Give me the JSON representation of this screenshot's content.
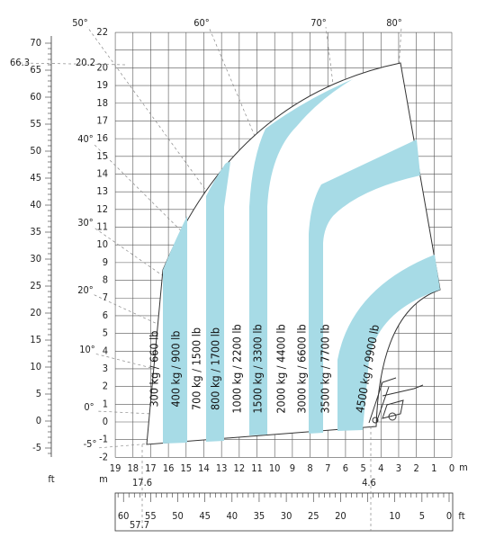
{
  "y_axis_m": [
    22,
    20,
    19,
    18,
    17,
    16,
    15,
    14,
    13,
    12,
    11,
    10,
    9,
    8,
    7,
    6,
    5,
    4,
    3,
    2,
    1,
    0,
    -1,
    -2
  ],
  "x_axis_m": [
    19,
    18,
    17,
    16,
    15,
    14,
    13,
    12,
    11,
    10,
    9,
    8,
    7,
    6,
    5,
    4,
    3,
    2,
    1,
    0
  ],
  "ft_left": [
    70,
    65,
    60,
    55,
    50,
    45,
    40,
    35,
    30,
    25,
    20,
    15,
    10,
    5,
    0,
    -5
  ],
  "ft_bottom": [
    60,
    55,
    50,
    45,
    40,
    35,
    30,
    25,
    20,
    10,
    5,
    0
  ],
  "angles": [
    "50°",
    "60°",
    "70°",
    "80°",
    "40°",
    "30°",
    "20°",
    "10°",
    "0°",
    "-5°"
  ],
  "markers": {
    "max_height_ft": "66.3",
    "max_height_m": "20.2",
    "max_reach_m": "17.6",
    "max_reach_ft": "57.7",
    "min_reach_m": "4.6"
  },
  "units": {
    "m_top": "m",
    "m_bottom": "m",
    "ft_left": "ft",
    "ft_bottom": "ft"
  },
  "load_zones": [
    "300 kg / 660 lb",
    "400 kg / 900 lb",
    "700 kg / 1500 lb",
    "800 kg / 1700 lb",
    "1000 kg / 2200 lb",
    "1500 kg / 3300 lb",
    "2000 kg / 4400 lb",
    "3000 kg / 6600 lb",
    "3500 kg / 7700 lb",
    "4500 kg / 9900 lb"
  ]
}
